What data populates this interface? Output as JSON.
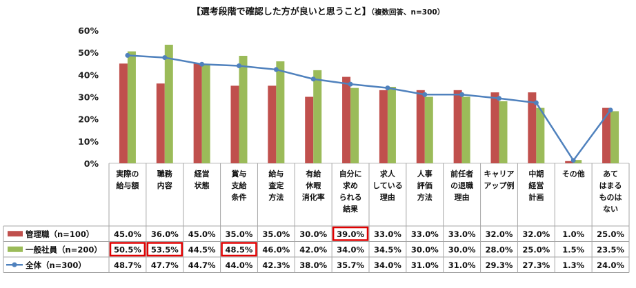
{
  "title": {
    "main": "【選考段階で確認した方が良いと思うこと】",
    "sub": "（複数回答、n=300）"
  },
  "chart_data": {
    "type": "bar",
    "title": "【選考段階で確認した方が良いと思うこと】（複数回答、n=300）",
    "categories": [
      [
        "実際の",
        "給与額"
      ],
      [
        "職務",
        "内容"
      ],
      [
        "経営",
        "状態"
      ],
      [
        "賞与",
        "支給",
        "条件"
      ],
      [
        "給与",
        "査定",
        "方法"
      ],
      [
        "有給",
        "休暇",
        "消化率"
      ],
      [
        "自分に",
        "求め",
        "られる",
        "結果"
      ],
      [
        "求人",
        "している",
        "理由"
      ],
      [
        "人事",
        "評価",
        "方法"
      ],
      [
        "前任者",
        "の退職",
        "理由"
      ],
      [
        "キャリア",
        "アップ例"
      ],
      [
        "中期",
        "経営",
        "計画"
      ],
      [
        "その他"
      ],
      [
        "あて",
        "はまる",
        "ものは",
        "ない"
      ]
    ],
    "ylim": [
      0,
      60
    ],
    "yticks": [
      0,
      10,
      20,
      30,
      40,
      50,
      60
    ],
    "ytick_labels": [
      "0%",
      "10%",
      "20%",
      "30%",
      "40%",
      "50%",
      "60%"
    ],
    "series": [
      {
        "name": "管理職（n=100）",
        "type": "bar",
        "color": "#c0504d",
        "values": [
          45.0,
          36.0,
          45.0,
          35.0,
          35.0,
          30.0,
          39.0,
          33.0,
          33.0,
          33.0,
          32.0,
          32.0,
          1.0,
          25.0
        ],
        "labels": [
          "45.0%",
          "36.0%",
          "45.0%",
          "35.0%",
          "35.0%",
          "30.0%",
          "39.0%",
          "33.0%",
          "33.0%",
          "33.0%",
          "32.0%",
          "32.0%",
          "1.0%",
          "25.0%"
        ]
      },
      {
        "name": "一般社員（n=200）",
        "type": "bar",
        "color": "#9bbb59",
        "values": [
          50.5,
          53.5,
          44.5,
          48.5,
          46.0,
          42.0,
          34.0,
          34.5,
          30.0,
          30.0,
          28.0,
          25.0,
          1.5,
          23.5
        ],
        "labels": [
          "50.5%",
          "53.5%",
          "44.5%",
          "48.5%",
          "46.0%",
          "42.0%",
          "34.0%",
          "34.5%",
          "30.0%",
          "30.0%",
          "28.0%",
          "25.0%",
          "1.5%",
          "23.5%"
        ]
      },
      {
        "name": "全体（n=300）",
        "type": "line",
        "color": "#4f81bd",
        "values": [
          48.7,
          47.7,
          44.7,
          44.0,
          42.3,
          38.0,
          35.7,
          34.0,
          31.0,
          31.0,
          29.3,
          27.3,
          1.3,
          24.0
        ],
        "labels": [
          "48.7%",
          "47.7%",
          "44.7%",
          "44.0%",
          "42.3%",
          "38.0%",
          "35.7%",
          "34.0%",
          "31.0%",
          "31.0%",
          "29.3%",
          "27.3%",
          "1.3%",
          "24.0%"
        ]
      }
    ],
    "highlights": [
      {
        "series": 0,
        "index": 6
      },
      {
        "series": 1,
        "index": 0
      },
      {
        "series": 1,
        "index": 1
      },
      {
        "series": 1,
        "index": 3
      }
    ],
    "highlight_color": "#e00000"
  }
}
